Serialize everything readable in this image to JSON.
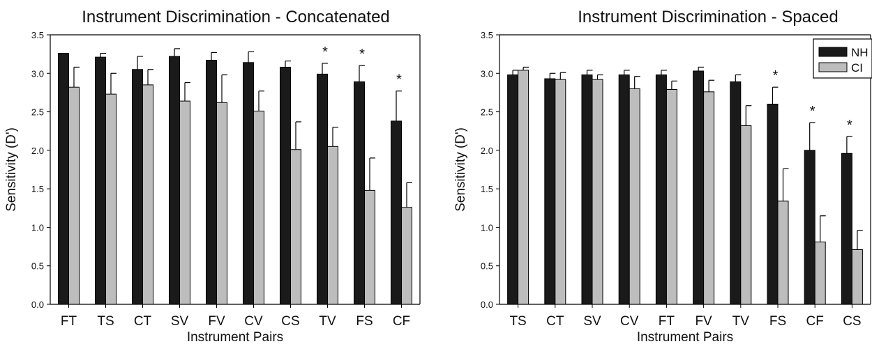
{
  "chart_data": [
    {
      "type": "bar",
      "title": "Instrument Discrimination - Concatenated",
      "xlabel": "Instrument Pairs",
      "ylabel": "Sensitivity (D')",
      "ylim": [
        0,
        3.5
      ],
      "yticks": [
        "0.0",
        "0.5",
        "1.0",
        "1.5",
        "2.0",
        "2.5",
        "3.0",
        "3.5"
      ],
      "categories": [
        "FT",
        "TS",
        "CT",
        "SV",
        "FV",
        "CV",
        "CS",
        "TV",
        "FS",
        "CF"
      ],
      "series": [
        {
          "name": "NH",
          "color": "#1a1a1a",
          "values": [
            3.26,
            3.21,
            3.05,
            3.22,
            3.17,
            3.14,
            3.08,
            2.99,
            2.89,
            2.38
          ],
          "errors": [
            0.0,
            0.05,
            0.17,
            0.1,
            0.1,
            0.14,
            0.08,
            0.14,
            0.21,
            0.39
          ]
        },
        {
          "name": "CI",
          "color": "#bdbdbd",
          "values": [
            2.82,
            2.73,
            2.85,
            2.64,
            2.62,
            2.51,
            2.01,
            2.05,
            1.48,
            1.26
          ],
          "errors": [
            0.26,
            0.27,
            0.2,
            0.24,
            0.36,
            0.26,
            0.36,
            0.25,
            0.42,
            0.32
          ]
        }
      ],
      "significance": [
        "",
        "",
        "",
        "",
        "",
        "",
        "",
        "*",
        "*",
        "*"
      ],
      "legend": "none",
      "grid": false
    },
    {
      "type": "bar",
      "title": "Instrument Discrimination - Spaced",
      "xlabel": "Instrument Pairs",
      "ylabel": "Sensitivity (D')",
      "ylim": [
        0,
        3.5
      ],
      "yticks": [
        "0.0",
        "0.5",
        "1.0",
        "1.5",
        "2.0",
        "2.5",
        "3.0",
        "3.5"
      ],
      "categories": [
        "TS",
        "CT",
        "SV",
        "CV",
        "FT",
        "FV",
        "TV",
        "FS",
        "CF",
        "CS"
      ],
      "series": [
        {
          "name": "NH",
          "color": "#1a1a1a",
          "values": [
            2.98,
            2.93,
            2.98,
            2.98,
            2.98,
            3.03,
            2.89,
            2.6,
            2.0,
            1.96
          ],
          "errors": [
            0.06,
            0.07,
            0.06,
            0.06,
            0.06,
            0.05,
            0.09,
            0.22,
            0.36,
            0.22
          ]
        },
        {
          "name": "CI",
          "color": "#bdbdbd",
          "values": [
            3.04,
            2.92,
            2.92,
            2.8,
            2.79,
            2.76,
            2.32,
            1.34,
            0.81,
            0.71
          ],
          "errors": [
            0.04,
            0.09,
            0.06,
            0.16,
            0.11,
            0.15,
            0.26,
            0.42,
            0.34,
            0.25
          ]
        }
      ],
      "significance": [
        "",
        "",
        "",
        "",
        "",
        "",
        "",
        "*",
        "*",
        "*"
      ],
      "legend": "top-right",
      "grid": false
    }
  ]
}
